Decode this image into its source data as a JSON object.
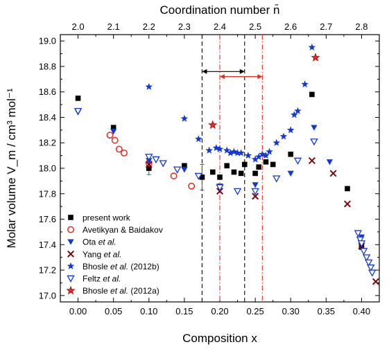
{
  "chart_data": {
    "type": "scatter",
    "title": "",
    "xlabel": "Composition x",
    "ylabel": "Molar volume V_m / cm³ mol⁻¹",
    "top_xlabel": "Coordination number n̄",
    "xlim": [
      -0.025,
      0.425
    ],
    "ylim": [
      16.95,
      19.05
    ],
    "top_xlim": [
      1.95,
      2.85
    ],
    "x_ticks": [
      0.0,
      0.05,
      0.1,
      0.15,
      0.2,
      0.25,
      0.3,
      0.35,
      0.4
    ],
    "y_ticks": [
      17.0,
      17.2,
      17.4,
      17.6,
      17.8,
      18.0,
      18.2,
      18.4,
      18.6,
      18.8,
      19.0
    ],
    "top_ticks": [
      2.0,
      2.1,
      2.2,
      2.3,
      2.4,
      2.5,
      2.6,
      2.7,
      2.8
    ],
    "grid": false,
    "legend_position": "bottom-left",
    "series": [
      {
        "name": "present work",
        "marker": "filled-square",
        "color": "#000000",
        "points": [
          [
            0.0,
            18.55
          ],
          [
            0.05,
            18.32
          ],
          [
            0.1,
            18.0
          ],
          [
            0.15,
            18.02
          ],
          [
            0.175,
            17.93
          ],
          [
            0.19,
            17.97
          ],
          [
            0.2,
            17.93
          ],
          [
            0.21,
            18.02
          ],
          [
            0.22,
            17.97
          ],
          [
            0.23,
            17.96
          ],
          [
            0.235,
            18.03
          ],
          [
            0.25,
            17.96
          ],
          [
            0.255,
            18.01
          ],
          [
            0.265,
            18.05
          ],
          [
            0.275,
            18.03
          ],
          [
            0.3,
            18.11
          ],
          [
            0.33,
            18.58
          ],
          [
            0.38,
            17.84
          ],
          [
            0.4,
            17.38
          ]
        ]
      },
      {
        "name": "Avetikyan & Baidakov",
        "marker": "open-circle",
        "color": "#e8281e",
        "points": [
          [
            0.045,
            18.26
          ],
          [
            0.052,
            18.22
          ],
          [
            0.058,
            18.15
          ],
          [
            0.065,
            18.12
          ],
          [
            0.1,
            18.04
          ],
          [
            0.135,
            17.94
          ],
          [
            0.16,
            17.86
          ]
        ]
      },
      {
        "name": "Ota et al.",
        "marker": "filled-triangle-down",
        "color": "#1238d6",
        "points": [
          [
            0.0,
            18.44
          ],
          [
            0.05,
            18.29
          ],
          [
            0.1,
            18.06
          ],
          [
            0.15,
            17.99
          ],
          [
            0.2,
            17.86
          ],
          [
            0.25,
            17.87
          ],
          [
            0.3,
            17.96
          ],
          [
            0.333,
            18.32
          ],
          [
            0.355,
            18.05
          ],
          [
            0.4,
            17.46
          ]
        ]
      },
      {
        "name": "Yang et al.",
        "marker": "x-cross",
        "color": "#7a0a0a",
        "points": [
          [
            0.1,
            18.03
          ],
          [
            0.2,
            17.82
          ],
          [
            0.25,
            17.78
          ],
          [
            0.33,
            18.06
          ],
          [
            0.36,
            17.96
          ],
          [
            0.38,
            17.72
          ],
          [
            0.4,
            17.39
          ],
          [
            0.42,
            17.11
          ]
        ]
      },
      {
        "name": "Bhosle et al. (2012b)",
        "marker": "filled-star",
        "color": "#1238d6",
        "points": [
          [
            0.1,
            18.64
          ],
          [
            0.15,
            18.39
          ],
          [
            0.17,
            18.23
          ],
          [
            0.185,
            18.14
          ],
          [
            0.195,
            18.16
          ],
          [
            0.2,
            18.15
          ],
          [
            0.21,
            18.14
          ],
          [
            0.215,
            18.12
          ],
          [
            0.22,
            18.13
          ],
          [
            0.225,
            18.12
          ],
          [
            0.23,
            18.12
          ],
          [
            0.24,
            18.1
          ],
          [
            0.25,
            18.07
          ],
          [
            0.255,
            18.09
          ],
          [
            0.26,
            18.11
          ],
          [
            0.265,
            18.1
          ],
          [
            0.27,
            18.13
          ],
          [
            0.28,
            18.2
          ],
          [
            0.29,
            18.25
          ],
          [
            0.3,
            18.3
          ],
          [
            0.305,
            18.42
          ],
          [
            0.31,
            18.45
          ],
          [
            0.32,
            18.66
          ],
          [
            0.33,
            18.95
          ]
        ]
      },
      {
        "name": "Feltz et al.",
        "marker": "open-triangle-down",
        "color": "#1238d6",
        "points": [
          [
            0.0,
            18.45
          ],
          [
            0.1,
            18.09
          ],
          [
            0.11,
            18.07
          ],
          [
            0.12,
            18.04
          ],
          [
            0.14,
            17.99
          ],
          [
            0.17,
            17.94
          ],
          [
            0.2,
            17.85
          ],
          [
            0.225,
            17.82
          ],
          [
            0.25,
            17.82
          ],
          [
            0.28,
            17.92
          ],
          [
            0.31,
            18.06
          ],
          [
            0.333,
            18.21
          ],
          [
            0.395,
            17.49
          ],
          [
            0.398,
            17.44
          ],
          [
            0.4,
            17.41
          ],
          [
            0.403,
            17.35
          ],
          [
            0.407,
            17.3
          ],
          [
            0.41,
            17.26
          ],
          [
            0.413,
            17.22
          ],
          [
            0.415,
            17.18
          ]
        ]
      },
      {
        "name": "Bhosle et al. (2012a)",
        "marker": "filled-star-outlined",
        "color": "#e8281e",
        "points": [
          [
            0.19,
            18.34
          ],
          [
            0.335,
            18.87
          ]
        ]
      }
    ],
    "error_bars": [
      {
        "x": 0.1,
        "y": 18.0,
        "yerr": 0.05
      },
      {
        "x": 0.175,
        "y": 17.93,
        "yerr": 0.1
      }
    ],
    "annotations": {
      "vertical_lines": [
        {
          "x": 0.175,
          "style": "dashed",
          "color": "#000000"
        },
        {
          "x": 0.235,
          "style": "dashed",
          "color": "#000000"
        },
        {
          "x": 0.2,
          "style": "dash-dot",
          "color": "#e8281e"
        },
        {
          "x": 0.26,
          "style": "dash-dot",
          "color": "#e8281e"
        }
      ],
      "arrows": [
        {
          "x_from": 0.175,
          "x_to": 0.235,
          "y": 18.76,
          "color": "#000000"
        },
        {
          "x_from": 0.2,
          "x_to": 0.26,
          "y": 18.72,
          "color": "#e8281e"
        }
      ]
    }
  }
}
